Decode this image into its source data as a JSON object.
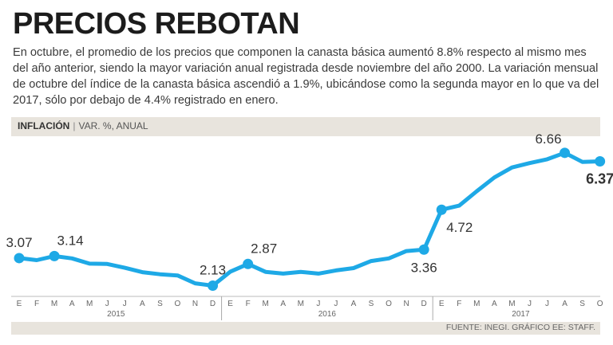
{
  "title": "PRECIOS REBOTAN",
  "description": "En octubre, el promedio de los precios que componen la canasta básica aumentó 8.8% respecto al mismo mes del año anterior, siendo la mayor variación anual registrada desde noviembre del año 2000. La variación mensual de octubre del índice de la canasta básica ascendió a 1.9%, ubicándose como la segunda mayor en lo que va del 2017, sólo por debajo de 4.4% registrado en enero.",
  "band": {
    "label": "INFLACIÓN",
    "sublabel": "VAR. %, ANUAL"
  },
  "source": "FUENTE: INEGI. GRÁFICO EE: STAFF.",
  "colors": {
    "line": "#1ea9e6",
    "band": "#e8e4dd"
  },
  "chart_data": {
    "type": "line",
    "title": "INFLACIÓN",
    "ylabel": "VAR. %, ANUAL",
    "ylim": [
      1.9,
      6.9
    ],
    "x": [
      "E",
      "F",
      "M",
      "A",
      "M",
      "J",
      "J",
      "A",
      "S",
      "O",
      "N",
      "D",
      "E",
      "F",
      "M",
      "A",
      "M",
      "J",
      "J",
      "A",
      "S",
      "O",
      "N",
      "D",
      "E",
      "F",
      "M",
      "A",
      "M",
      "J",
      "J",
      "A",
      "S",
      "O"
    ],
    "years": [
      {
        "label": "2015",
        "start": 0,
        "end": 11
      },
      {
        "label": "2016",
        "start": 12,
        "end": 23
      },
      {
        "label": "2017",
        "start": 24,
        "end": 33
      }
    ],
    "series": [
      {
        "name": "Inflación",
        "values": [
          3.07,
          3.0,
          3.14,
          3.06,
          2.88,
          2.87,
          2.74,
          2.59,
          2.52,
          2.48,
          2.21,
          2.13,
          2.61,
          2.87,
          2.6,
          2.54,
          2.6,
          2.54,
          2.65,
          2.73,
          2.97,
          3.06,
          3.31,
          3.36,
          4.72,
          4.86,
          5.35,
          5.82,
          6.16,
          6.31,
          6.44,
          6.66,
          6.35,
          6.37
        ]
      }
    ],
    "labels": [
      {
        "index": 0,
        "text": "3.07",
        "bold": false,
        "pos": "above"
      },
      {
        "index": 2,
        "text": "3.14",
        "bold": false,
        "pos": "above-right"
      },
      {
        "index": 11,
        "text": "2.13",
        "bold": false,
        "pos": "above"
      },
      {
        "index": 13,
        "text": "2.87",
        "bold": false,
        "pos": "above-right"
      },
      {
        "index": 23,
        "text": "3.36",
        "bold": false,
        "pos": "below"
      },
      {
        "index": 24,
        "text": "4.72",
        "bold": false,
        "pos": "below-right"
      },
      {
        "index": 31,
        "text": "6.66",
        "bold": false,
        "pos": "above-left"
      },
      {
        "index": 33,
        "text": "6.37",
        "bold": true,
        "pos": "below"
      }
    ]
  }
}
